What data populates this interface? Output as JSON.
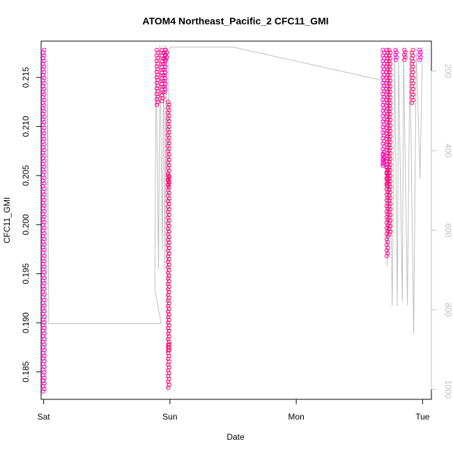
{
  "chart_data": {
    "type": "scatter",
    "title": "ATOM4 Northeast_Pacific_2 CFC11_GMI",
    "xlabel": "Date",
    "ylabel": "CFC11_GMI",
    "x_ticks": [
      "Sat",
      "Sun",
      "Mon",
      "Tue"
    ],
    "xlim_days": [
      -0.02,
      3.07
    ],
    "ylim": [
      0.1822,
      0.2187
    ],
    "y_ticks": [
      "0.185",
      "0.190",
      "0.195",
      "0.200",
      "0.205",
      "0.210",
      "0.215"
    ],
    "y2_ticks": [
      "200",
      "400",
      "600",
      "800",
      "1000"
    ],
    "y2lim": [
      1025,
      125
    ],
    "grid": false,
    "point_colors": [
      "#ff00cc",
      "#ff0088",
      "#ff0066"
    ],
    "line_color": "#bfbfbf",
    "series": [
      {
        "marker": "circle",
        "points": [
          {
            "day": 0.0,
            "profile": [
              [
                0.183,
                0.1841
              ],
              [
                0.1841,
                0.2178
              ]
            ]
          },
          {
            "day": 0.9,
            "profile": [
              [
                0.2122,
                0.2178
              ]
            ]
          },
          {
            "day": 0.94,
            "profile": [
              [
                0.2126,
                0.2178
              ]
            ]
          },
          {
            "day": 0.96,
            "profile": [
              [
                0.2135,
                0.2178
              ]
            ]
          },
          {
            "day": 0.97,
            "profile": [
              [
                0.2168,
                0.2178
              ]
            ]
          },
          {
            "day": 0.99,
            "profile": [
              [
                0.2024,
                0.2125
              ],
              [
                0.204,
                0.205
              ],
              [
                0.1872,
                0.2024
              ],
              [
                0.1834,
                0.1878
              ]
            ]
          },
          {
            "day": 2.69,
            "profile": [
              [
                0.206,
                0.2178
              ],
              [
                0.2062,
                0.2072
              ]
            ]
          },
          {
            "day": 2.72,
            "profile": [
              [
                0.1968,
                0.2178
              ],
              [
                0.204,
                0.2058
              ]
            ]
          },
          {
            "day": 2.74,
            "profile": [
              [
                0.199,
                0.2178
              ]
            ]
          },
          {
            "day": 2.79,
            "profile": [
              [
                0.2168,
                0.2178
              ]
            ]
          },
          {
            "day": 2.86,
            "profile": [
              [
                0.2168,
                0.2178
              ]
            ]
          },
          {
            "day": 2.92,
            "profile": [
              [
                0.2124,
                0.2178
              ]
            ]
          },
          {
            "day": 2.98,
            "profile": [
              [
                0.2168,
                0.2178
              ]
            ]
          }
        ]
      }
    ],
    "depth_trace": [
      [
        -0.02,
        835
      ],
      [
        0.02,
        835
      ],
      [
        0.02,
        1003
      ],
      [
        0.03,
        170
      ],
      [
        0.04,
        835
      ],
      [
        0.93,
        835
      ],
      [
        0.88,
        745
      ],
      [
        0.89,
        170
      ],
      [
        0.91,
        700
      ],
      [
        0.92,
        135
      ],
      [
        0.94,
        650
      ],
      [
        0.95,
        135
      ],
      [
        0.96,
        700
      ],
      [
        0.97,
        135
      ],
      [
        0.98,
        1003
      ],
      [
        0.99,
        170
      ],
      [
        1.0,
        140
      ],
      [
        1.5,
        140
      ],
      [
        2.7,
        225
      ],
      [
        2.72,
        690
      ],
      [
        2.73,
        170
      ],
      [
        2.76,
        790
      ],
      [
        2.78,
        160
      ],
      [
        2.8,
        790
      ],
      [
        2.81,
        170
      ],
      [
        2.84,
        780
      ],
      [
        2.85,
        160
      ],
      [
        2.88,
        790
      ],
      [
        2.9,
        160
      ],
      [
        2.93,
        860
      ],
      [
        2.95,
        140
      ],
      [
        2.98,
        470
      ],
      [
        3.0,
        140
      ]
    ]
  }
}
